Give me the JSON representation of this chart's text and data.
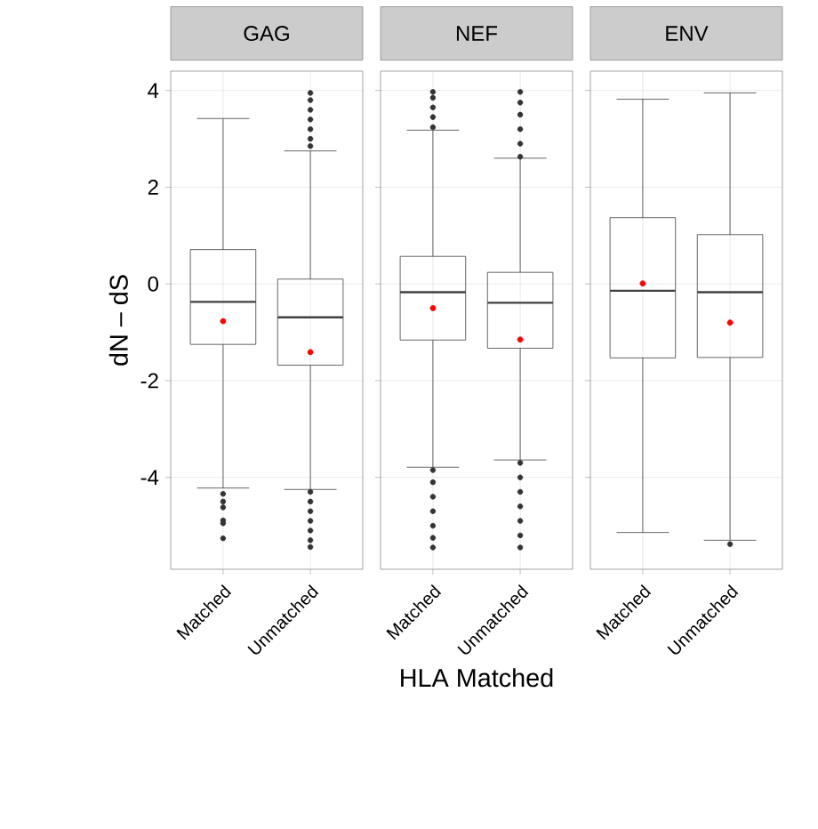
{
  "chart_data": [
    {
      "type": "box",
      "title": "GAG",
      "ylabel": "dN – dS",
      "categories": [
        "Matched",
        "Unmatched"
      ],
      "ylim": [
        -5.9,
        4.4
      ],
      "yticks": [
        -4,
        -2,
        0,
        2,
        4
      ],
      "grid": true,
      "boxes": [
        {
          "low": -4.22,
          "q1": -1.25,
          "median": -0.37,
          "q3": 0.71,
          "high": 3.42,
          "mean": -0.77,
          "outliers": [
            -4.34,
            -4.5,
            -4.62,
            -4.89,
            -4.95,
            -5.26
          ]
        },
        {
          "low": -4.25,
          "q1": -1.68,
          "median": -0.69,
          "q3": 0.1,
          "high": 2.75,
          "mean": -1.41,
          "outliers": [
            2.85,
            3.0,
            3.2,
            3.4,
            3.6,
            3.8,
            3.95,
            -4.3,
            -4.5,
            -4.7,
            -4.9,
            -5.1,
            -5.3,
            -5.44
          ]
        }
      ]
    },
    {
      "type": "box",
      "title": "NEF",
      "xlabel": "HLA Matched",
      "categories": [
        "Matched",
        "Unmatched"
      ],
      "ylim": [
        -5.9,
        4.4
      ],
      "yticks": [
        -4,
        -2,
        0,
        2,
        4
      ],
      "grid": true,
      "tick_labels": "x",
      "boxes": [
        {
          "low": -3.79,
          "q1": -1.16,
          "median": -0.17,
          "q3": 0.57,
          "high": 3.18,
          "mean": -0.5,
          "outliers": [
            3.24,
            3.45,
            3.65,
            3.85,
            3.97,
            -3.85,
            -4.1,
            -4.4,
            -4.7,
            -5.0,
            -5.25,
            -5.45
          ]
        },
        {
          "low": -3.64,
          "q1": -1.33,
          "median": -0.39,
          "q3": 0.24,
          "high": 2.6,
          "mean": -1.15,
          "outliers": [
            2.63,
            2.9,
            3.2,
            3.5,
            3.75,
            3.97,
            -3.7,
            -4.0,
            -4.3,
            -4.6,
            -4.9,
            -5.2,
            -5.45
          ]
        }
      ]
    },
    {
      "type": "box",
      "title": "ENV",
      "categories": [
        "Matched",
        "Unmatched"
      ],
      "ylim": [
        -5.9,
        4.4
      ],
      "yticks": [
        -4,
        -2,
        0,
        2,
        4
      ],
      "grid": true,
      "tick_labels": "x",
      "boxes": [
        {
          "low": -5.14,
          "q1": -1.53,
          "median": -0.14,
          "q3": 1.37,
          "high": 3.82,
          "mean": 0.01
        },
        {
          "low": -5.3,
          "q1": -1.52,
          "median": -0.17,
          "q3": 1.02,
          "high": 3.95,
          "mean": -0.8,
          "outliers": [
            -5.38
          ]
        }
      ]
    }
  ]
}
